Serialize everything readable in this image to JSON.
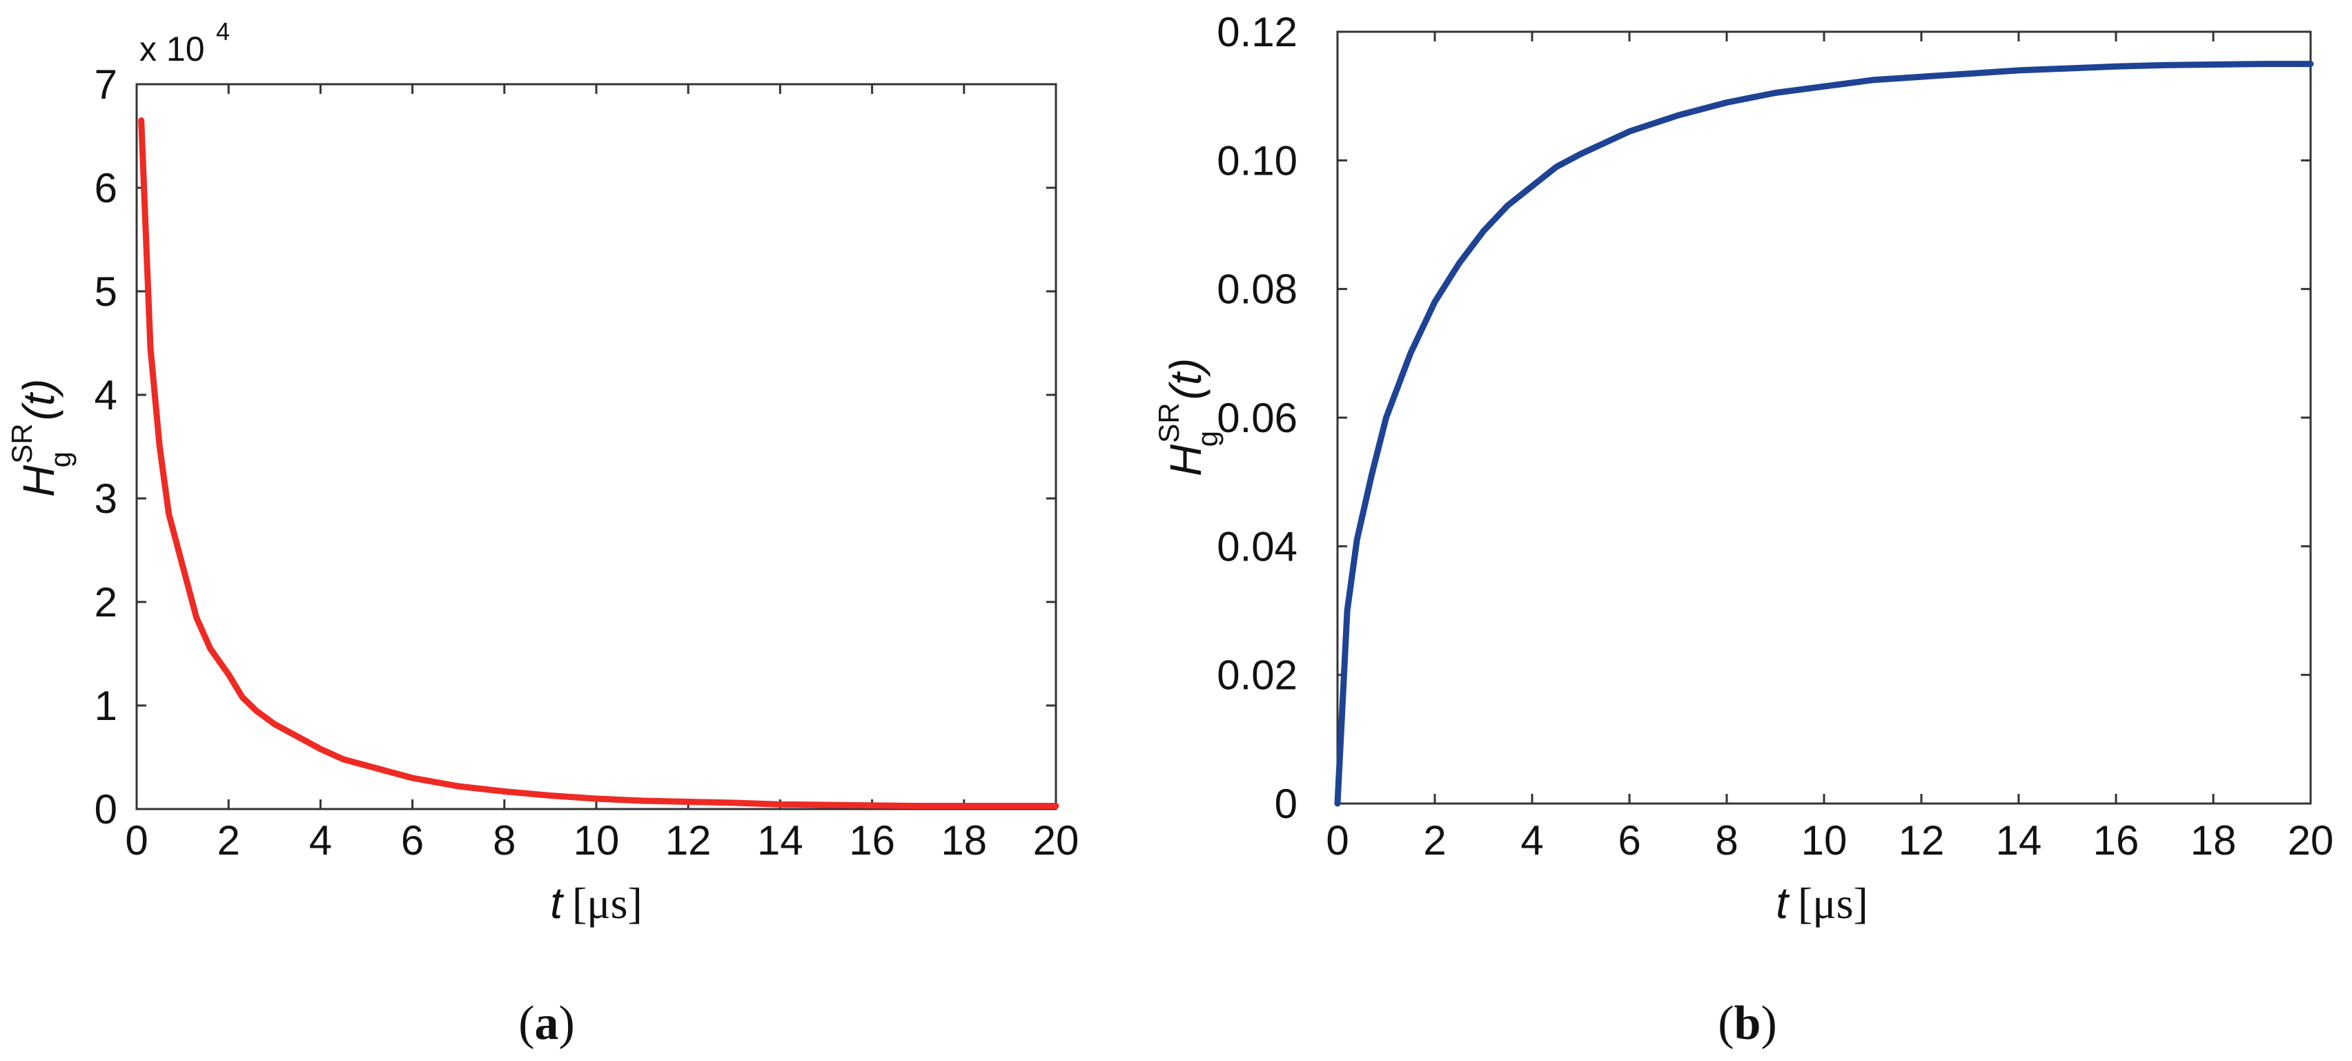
{
  "chart_data": [
    {
      "type": "line",
      "panel": "a",
      "caption_letter": "a",
      "xlabel": {
        "symbol": "t",
        "unit": "[μs]"
      },
      "ylabel": {
        "base": "H",
        "sub": "g",
        "sup": "SR",
        "arg": "(t)"
      },
      "y_multiplier": {
        "text": "x 10",
        "exponent": "4"
      },
      "xlim": [
        0,
        20
      ],
      "ylim": [
        0,
        7
      ],
      "x_ticks": [
        0,
        2,
        4,
        6,
        8,
        10,
        12,
        14,
        16,
        18,
        20
      ],
      "x_tick_labels": [
        "0",
        "2",
        "4",
        "6",
        "8",
        "10",
        "12",
        "14",
        "16",
        "18",
        "20"
      ],
      "y_ticks": [
        0,
        1,
        2,
        3,
        4,
        5,
        6,
        7
      ],
      "y_tick_labels": [
        "0",
        "1",
        "2",
        "3",
        "4",
        "5",
        "6",
        "7"
      ],
      "grid": false,
      "series": [
        {
          "color": "#ee2a24",
          "x": [
            0.1,
            0.3,
            0.5,
            0.7,
            1.0,
            1.3,
            1.6,
            2.0,
            2.3,
            2.6,
            3.0,
            3.5,
            4.0,
            4.5,
            5.0,
            6.0,
            7.0,
            8.0,
            9.0,
            10.0,
            11.0,
            12.0,
            13.0,
            14.0,
            15.0,
            16.0,
            17.0,
            18.0,
            19.0,
            20.0
          ],
          "y": [
            6.65,
            4.45,
            3.5,
            2.85,
            2.35,
            1.85,
            1.55,
            1.3,
            1.08,
            0.95,
            0.82,
            0.7,
            0.58,
            0.48,
            0.42,
            0.3,
            0.22,
            0.17,
            0.13,
            0.1,
            0.08,
            0.07,
            0.06,
            0.045,
            0.04,
            0.035,
            0.03,
            0.03,
            0.03,
            0.03
          ]
        }
      ]
    },
    {
      "type": "line",
      "panel": "b",
      "caption_letter": "b",
      "xlabel": {
        "symbol": "t",
        "unit": "[μs]"
      },
      "ylabel": {
        "base": "H",
        "sub": "g",
        "sup": "SR",
        "arg": "(t)"
      },
      "xlim": [
        0,
        20
      ],
      "ylim": [
        0,
        0.12
      ],
      "x_ticks": [
        0,
        2,
        4,
        6,
        8,
        10,
        12,
        14,
        16,
        18,
        20
      ],
      "x_tick_labels": [
        "0",
        "2",
        "4",
        "6",
        "8",
        "10",
        "12",
        "14",
        "16",
        "18",
        "20"
      ],
      "y_ticks": [
        0,
        0.02,
        0.04,
        0.06,
        0.08,
        0.1,
        0.12
      ],
      "y_tick_labels": [
        "0",
        "0.02",
        "0.04",
        "0.06",
        "0.08",
        "0.10",
        "0.12"
      ],
      "grid": false,
      "series": [
        {
          "color": "#1f4394",
          "x": [
            0,
            0.2,
            0.4,
            0.7,
            1.0,
            1.5,
            2.0,
            2.5,
            3.0,
            3.5,
            4.0,
            4.5,
            5.0,
            6.0,
            7.0,
            8.0,
            9.0,
            10.0,
            11.0,
            12.0,
            13.0,
            14.0,
            15.0,
            16.0,
            17.0,
            18.0,
            19.0,
            20.0
          ],
          "y": [
            0,
            0.03,
            0.041,
            0.051,
            0.06,
            0.07,
            0.078,
            0.084,
            0.089,
            0.093,
            0.096,
            0.099,
            0.101,
            0.1045,
            0.107,
            0.109,
            0.1105,
            0.1115,
            0.1125,
            0.113,
            0.1135,
            0.114,
            0.1143,
            0.1146,
            0.1148,
            0.1149,
            0.115,
            0.115
          ]
        }
      ]
    }
  ]
}
